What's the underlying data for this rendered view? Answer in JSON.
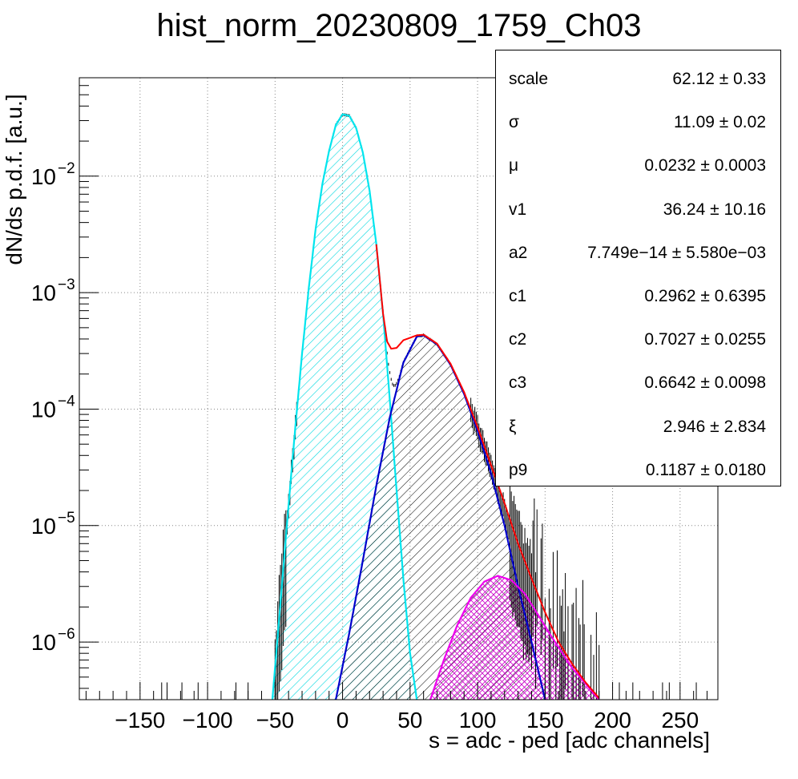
{
  "chart_data": {
    "type": "histogram",
    "title": "hist_norm_20230809_1759_Ch03",
    "xlabel": "s = adc - ped [adc channels]",
    "ylabel": "dN/ds p.d.f. [a.u.]",
    "xlim": [
      -195,
      278
    ],
    "ylim": [
      3.2e-07,
      0.07
    ],
    "yscale": "log",
    "grid": true,
    "x_ticks": [
      -150,
      -100,
      -50,
      0,
      50,
      100,
      150,
      200,
      250
    ],
    "x_tick_labels": [
      "−150",
      "−100",
      "−50",
      "0",
      "50",
      "100",
      "150",
      "200",
      "250"
    ],
    "y_tick_labels": [
      {
        "base": "10",
        "exp": "−2",
        "value": 0.01
      },
      {
        "base": "10",
        "exp": "−3",
        "value": 0.001
      },
      {
        "base": "10",
        "exp": "−4",
        "value": 0.0001
      },
      {
        "base": "10",
        "exp": "−5",
        "value": 1e-05
      },
      {
        "base": "10",
        "exp": "−6",
        "value": 1e-06
      }
    ],
    "series": [
      {
        "color": "#00e5ee",
        "hatch": "diagonal",
        "points": [
          [
            -52,
            3.2e-07
          ],
          [
            -45,
            3e-06
          ],
          [
            -40,
            1.5e-05
          ],
          [
            -35,
            7e-05
          ],
          [
            -30,
            0.0003
          ],
          [
            -25,
            0.0011
          ],
          [
            -20,
            0.0035
          ],
          [
            -15,
            0.0085
          ],
          [
            -10,
            0.0165
          ],
          [
            -5,
            0.0275
          ],
          [
            0,
            0.034
          ],
          [
            5,
            0.033
          ],
          [
            10,
            0.026
          ],
          [
            15,
            0.016
          ],
          [
            20,
            0.0075
          ],
          [
            25,
            0.0026
          ],
          [
            30,
            0.00065
          ],
          [
            35,
            0.00012
          ],
          [
            40,
            2e-05
          ],
          [
            45,
            3.5e-06
          ],
          [
            50,
            8e-07
          ],
          [
            55,
            3.2e-07
          ]
        ]
      },
      {
        "color": "#0000cc",
        "hatch": "diagonal",
        "points": [
          [
            -5,
            3.2e-07
          ],
          [
            5,
            1.2e-06
          ],
          [
            15,
            5e-06
          ],
          [
            25,
            2.2e-05
          ],
          [
            35,
            8.5e-05
          ],
          [
            45,
            0.00025
          ],
          [
            55,
            0.00042
          ],
          [
            60,
            0.00043
          ],
          [
            70,
            0.00036
          ],
          [
            80,
            0.00024
          ],
          [
            90,
            0.000135
          ],
          [
            100,
            6.5e-05
          ],
          [
            110,
            2.8e-05
          ],
          [
            120,
            1e-05
          ],
          [
            130,
            3e-06
          ],
          [
            140,
            1e-06
          ],
          [
            150,
            3.2e-07
          ]
        ]
      },
      {
        "color": "#ee00ee",
        "hatch": "cross",
        "points": [
          [
            65,
            3.2e-07
          ],
          [
            75,
            7e-07
          ],
          [
            85,
            1.4e-06
          ],
          [
            95,
            2.4e-06
          ],
          [
            105,
            3.3e-06
          ],
          [
            115,
            3.7e-06
          ],
          [
            125,
            3.4e-06
          ],
          [
            135,
            2.6e-06
          ],
          [
            145,
            1.7e-06
          ],
          [
            155,
            1.1e-06
          ],
          [
            170,
            6e-07
          ],
          [
            190,
            3.2e-07
          ]
        ]
      },
      {
        "color": "#ff0000",
        "hatch": "none",
        "points": [
          [
            25,
            0.0026
          ],
          [
            30,
            0.00066
          ],
          [
            33,
            0.00038
          ],
          [
            36,
            0.00033
          ],
          [
            40,
            0.000335
          ],
          [
            45,
            0.00039
          ],
          [
            55,
            0.00043
          ],
          [
            60,
            0.000435
          ],
          [
            70,
            0.000365
          ],
          [
            80,
            0.000245
          ],
          [
            90,
            0.00014
          ],
          [
            100,
            7e-05
          ],
          [
            110,
            3.3e-05
          ],
          [
            120,
            1.55e-05
          ],
          [
            130,
            7e-06
          ],
          [
            140,
            3.5e-06
          ],
          [
            150,
            1.8e-06
          ],
          [
            160,
            1e-06
          ],
          [
            170,
            6.5e-07
          ],
          [
            180,
            4.5e-07
          ],
          [
            190,
            3.3e-07
          ]
        ]
      }
    ]
  },
  "stats": [
    {
      "key": "scale",
      "value": "62.12 ± 0.33"
    },
    {
      "key": "σ",
      "value": "11.09 ± 0.02"
    },
    {
      "key": "μ",
      "value": "0.0232 ± 0.0003"
    },
    {
      "key": "v1",
      "value": "36.24 ± 10.16"
    },
    {
      "key": "a2",
      "value": "7.749e−14 ± 5.580e−03"
    },
    {
      "key": "c1",
      "value": "0.2962 ± 0.6395"
    },
    {
      "key": "c2",
      "value": "0.7027 ± 0.0255"
    },
    {
      "key": "c3",
      "value": "0.6642 ± 0.0098"
    },
    {
      "key": "ξ",
      "value": "2.946 ± 2.834"
    },
    {
      "key": "p9",
      "value": "0.1187 ± 0.0180"
    }
  ]
}
